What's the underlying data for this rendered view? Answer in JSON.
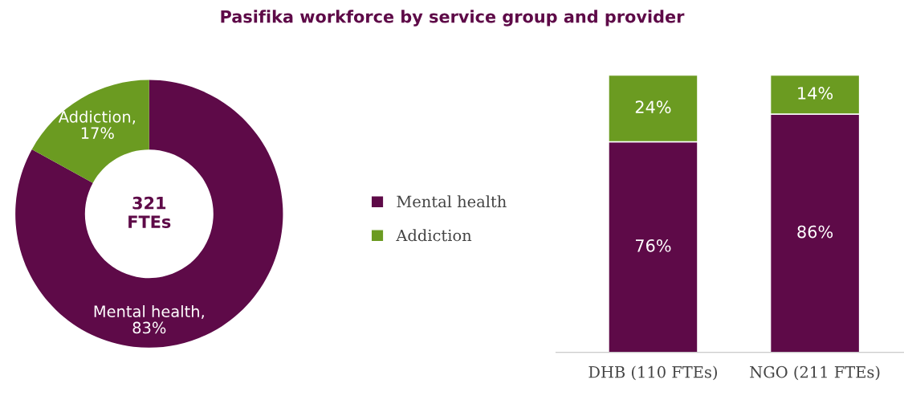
{
  "chart_data": [
    {
      "type": "donut",
      "title": "Pasifika workforce by service group and provider",
      "categories": [
        "Mental health",
        "Addiction"
      ],
      "values": [
        83,
        17
      ],
      "colors": [
        "#5e0a48",
        "#6b9b21"
      ],
      "value_labels": [
        "Mental health,\n83%",
        "Addiction,\n17%"
      ],
      "annotations": [
        "321\nFTEs"
      ],
      "legend": "right"
    },
    {
      "type": "bar",
      "stacked": true,
      "categories": [
        "DHB (110 FTEs)",
        "NGO (211 FTEs)"
      ],
      "ylim": [
        0,
        100
      ],
      "tick_labels": "x",
      "legend": "left",
      "series": [
        {
          "name": "Mental health",
          "color": "#5e0a48",
          "values": [
            76,
            86
          ],
          "value_labels": [
            "76%",
            "86%"
          ]
        },
        {
          "name": "Addiction",
          "color": "#6b9b21",
          "values": [
            24,
            14
          ],
          "value_labels": [
            "24%",
            "14%"
          ]
        }
      ]
    }
  ]
}
